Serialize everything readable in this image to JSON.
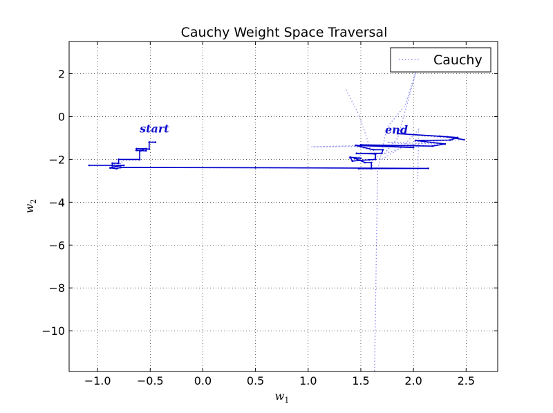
{
  "chart_data": {
    "type": "line",
    "title": "Cauchy Weight Space Traversal",
    "xlabel": "w",
    "xlabel_sub": "1",
    "ylabel": "w",
    "ylabel_sub": "2",
    "xlim": [
      -1.27,
      2.8
    ],
    "ylim": [
      -11.9,
      3.5
    ],
    "xticks": [
      -1.0,
      -0.5,
      0.0,
      0.5,
      1.0,
      1.5,
      2.0,
      2.5
    ],
    "xtick_labels": [
      "−1.0",
      "−0.5",
      "0.0",
      "0.5",
      "1.0",
      "1.5",
      "2.0",
      "2.5"
    ],
    "yticks": [
      2,
      0,
      -2,
      -4,
      -6,
      -8,
      -10
    ],
    "ytick_labels": [
      "2",
      "0",
      "−2",
      "−4",
      "−6",
      "−8",
      "−10"
    ],
    "grid": true,
    "legend": {
      "position": "top-right",
      "entries": [
        "Cauchy"
      ]
    },
    "annotations": [
      {
        "text": "start",
        "x": -0.6,
        "y": -0.75
      },
      {
        "text": "end",
        "x": 1.73,
        "y": -0.8
      }
    ],
    "series": [
      {
        "name": "Cauchy",
        "style": "dotted",
        "color": "#8888ee",
        "points": [
          [
            -0.47,
            -1.17
          ],
          [
            -0.51,
            -1.17
          ],
          [
            -0.51,
            -1.5
          ],
          [
            -0.58,
            -1.5
          ],
          [
            -0.58,
            -1.62
          ],
          [
            -0.64,
            -1.62
          ],
          [
            -0.64,
            -1.5
          ],
          [
            -0.52,
            -1.55
          ],
          [
            -0.6,
            -1.55
          ],
          [
            -0.6,
            -2.05
          ],
          [
            -0.77,
            -2.05
          ],
          [
            -0.77,
            -2.2
          ],
          [
            -0.84,
            -2.2
          ],
          [
            -0.84,
            -2.3
          ],
          [
            -1.08,
            -2.3
          ],
          [
            -0.75,
            -2.3
          ],
          [
            -0.87,
            -2.4
          ],
          [
            -0.83,
            -2.45
          ],
          [
            -0.77,
            -2.38
          ],
          [
            0.52,
            -2.4
          ],
          [
            2.14,
            -2.42
          ],
          [
            1.48,
            -2.45
          ],
          [
            1.61,
            -2.45
          ],
          [
            1.61,
            -2.15
          ],
          [
            1.55,
            -2.15
          ],
          [
            1.42,
            -1.9
          ],
          [
            1.5,
            -1.9
          ],
          [
            1.38,
            -1.9
          ],
          [
            1.42,
            -2.1
          ],
          [
            1.5,
            -2.0
          ],
          [
            1.62,
            -2.05
          ],
          [
            1.64,
            -1.7
          ],
          [
            1.45,
            -1.75
          ],
          [
            1.7,
            -1.7
          ],
          [
            1.71,
            -1.55
          ],
          [
            1.6,
            -1.55
          ],
          [
            1.45,
            -1.4
          ],
          [
            1.03,
            -1.42
          ],
          [
            1.45,
            -1.36
          ],
          [
            2.0,
            -1.45
          ],
          [
            1.45,
            -1.33
          ],
          [
            2.18,
            -1.4
          ],
          [
            1.75,
            -1.2
          ],
          [
            2.3,
            -1.3
          ],
          [
            2.0,
            -1.15
          ],
          [
            2.3,
            -1.1
          ],
          [
            2.4,
            -1.0
          ],
          [
            2.2,
            -0.95
          ],
          [
            1.85,
            -0.8
          ],
          [
            2.35,
            -0.95
          ],
          [
            2.48,
            -1.08
          ],
          [
            2.2,
            -1.15
          ],
          [
            1.95,
            -1.35
          ],
          [
            1.72,
            -1.75
          ],
          [
            1.85,
            -1.0
          ],
          [
            2.03,
            2.2
          ],
          [
            1.92,
            0.5
          ],
          [
            1.75,
            -0.5
          ],
          [
            1.66,
            -2.5
          ],
          [
            1.63,
            -11.9
          ]
        ]
      },
      {
        "name": "",
        "style": "dotted",
        "color": "#9999ee",
        "points": [
          [
            1.36,
            1.25
          ],
          [
            1.48,
            0.1
          ],
          [
            1.55,
            -0.9
          ],
          [
            1.6,
            -1.7
          ],
          [
            1.7,
            -2.0
          ],
          [
            1.9,
            -1.4
          ],
          [
            2.05,
            -0.6
          ],
          [
            2.04,
            -3.1
          ]
        ]
      }
    ],
    "trajectory": {
      "color": "#0000cc",
      "points": [
        [
          -0.45,
          -1.2
        ],
        [
          -0.51,
          -1.2
        ],
        [
          -0.51,
          -1.52
        ],
        [
          -0.57,
          -1.52
        ],
        [
          -0.57,
          -1.58
        ],
        [
          -0.63,
          -1.58
        ],
        [
          -0.63,
          -1.5
        ],
        [
          -0.54,
          -1.5
        ],
        [
          -0.54,
          -1.6
        ],
        [
          -0.6,
          -1.6
        ],
        [
          -0.6,
          -2.0
        ],
        [
          -0.8,
          -2.0
        ],
        [
          -0.8,
          -2.18
        ],
        [
          -0.86,
          -2.18
        ],
        [
          -0.86,
          -2.28
        ],
        [
          -1.08,
          -2.28
        ],
        [
          -0.75,
          -2.28
        ],
        [
          -0.86,
          -2.36
        ],
        [
          -0.88,
          -2.4
        ],
        [
          -0.82,
          -2.43
        ],
        [
          -0.78,
          -2.38
        ],
        [
          0.5,
          -2.39
        ],
        [
          2.14,
          -2.42
        ],
        [
          1.48,
          -2.43
        ],
        [
          1.6,
          -2.43
        ],
        [
          1.6,
          -2.15
        ],
        [
          1.54,
          -2.15
        ],
        [
          1.44,
          -1.95
        ],
        [
          1.5,
          -1.95
        ],
        [
          1.4,
          -1.9
        ],
        [
          1.42,
          -2.08
        ],
        [
          1.58,
          -2.02
        ],
        [
          1.64,
          -2.0
        ],
        [
          1.64,
          -1.75
        ],
        [
          1.46,
          -1.72
        ],
        [
          1.7,
          -1.72
        ],
        [
          1.71,
          -1.55
        ],
        [
          1.62,
          -1.55
        ],
        [
          1.45,
          -1.35
        ],
        [
          2.0,
          -1.45
        ],
        [
          1.5,
          -1.32
        ],
        [
          2.18,
          -1.38
        ],
        [
          2.3,
          -1.28
        ],
        [
          2.02,
          -1.12
        ],
        [
          2.35,
          -1.1
        ],
        [
          2.42,
          -0.98
        ],
        [
          2.25,
          -0.92
        ],
        [
          1.85,
          -0.8
        ],
        [
          2.32,
          -0.95
        ],
        [
          2.48,
          -1.08
        ]
      ]
    }
  }
}
